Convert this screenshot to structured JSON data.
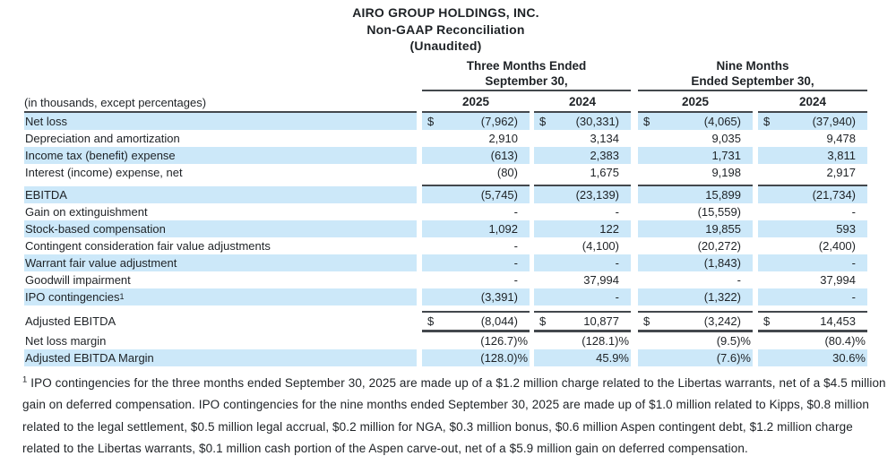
{
  "title": {
    "company": "AIRO GROUP HOLDINGS, INC.",
    "line2": "Non-GAAP Reconciliation",
    "line3": "(Unaudited)"
  },
  "table": {
    "note": "(in thousands, except percentages)",
    "currency_symbol": "$",
    "column_groups": [
      {
        "line1": "Three Months Ended",
        "line2": "September 30,"
      },
      {
        "line1": "Nine Months",
        "line2": "Ended September 30,"
      }
    ],
    "years": [
      "2025",
      "2024",
      "2025",
      "2024"
    ],
    "rows": [
      {
        "label": "Net loss",
        "dollar": true,
        "shaded": true,
        "values": [
          "(7,962)",
          "(30,331)",
          "(4,065)",
          "(37,940)"
        ]
      },
      {
        "label": "Depreciation and amortization",
        "shaded": false,
        "values": [
          "2,910",
          "3,134",
          "9,035",
          "9,478"
        ]
      },
      {
        "label": "Income tax (benefit) expense",
        "shaded": true,
        "values": [
          "(613)",
          "2,383",
          "1,731",
          "3,811"
        ]
      },
      {
        "label": "Interest (income) expense, net",
        "shaded": false,
        "values": [
          "(80)",
          "1,675",
          "9,198",
          "2,917"
        ]
      },
      {
        "label": "EBITDA",
        "shaded": true,
        "rule_above": true,
        "space_above": 4,
        "values": [
          "(5,745)",
          "(23,139)",
          "15,899",
          "(21,734)"
        ]
      },
      {
        "label": "Gain on extinguishment",
        "shaded": false,
        "values": [
          "-",
          "-",
          "(15,559)",
          "-"
        ]
      },
      {
        "label": "Stock-based compensation",
        "shaded": true,
        "values": [
          "1,092",
          "122",
          "19,855",
          "593"
        ]
      },
      {
        "label": "Contingent consideration fair value adjustments",
        "shaded": false,
        "values": [
          "-",
          "(4,100)",
          "(20,272)",
          "(2,400)"
        ]
      },
      {
        "label": "Warrant fair value adjustment",
        "shaded": true,
        "values": [
          "-",
          "-",
          "(1,843)",
          "-"
        ]
      },
      {
        "label": "Goodwill impairment",
        "shaded": false,
        "values": [
          "-",
          "37,994",
          "-",
          "37,994"
        ]
      },
      {
        "label": "IPO contingencies",
        "label_sup": "1",
        "shaded": true,
        "values": [
          "(3,391)",
          "-",
          "(1,322)",
          "-"
        ]
      },
      {
        "label": "Adjusted EBITDA",
        "dollar": true,
        "shaded": false,
        "rule_above": true,
        "space_above": 6,
        "thick_rule_below": true,
        "values": [
          "(8,044)",
          "10,877",
          "(3,242)",
          "14,453"
        ]
      },
      {
        "label": "Net loss margin",
        "shaded": false,
        "values": [
          "(126.7)%",
          "(128.1)%",
          "(9.5)%",
          "(80.4)%"
        ]
      },
      {
        "label": "Adjusted EBITDA Margin",
        "shaded": true,
        "values": [
          "(128.0)%",
          "45.9%",
          "(7.6)%",
          "30.6%"
        ]
      }
    ]
  },
  "footnote": {
    "sup": "1",
    "text": "IPO contingencies for the three months ended September 30, 2025 are made up of a $1.2 million charge related to the Libertas warrants, net of a $4.5 million gain on deferred compensation. IPO contingencies for the nine months ended September 30, 2025 are made up of $1.0 million related to Kipps, $0.8 million related to the legal settlement, $0.5 million legal accrual, $0.2 million for NGA, $0.3 million bonus, $0.6 million Aspen contingent debt, $1.2 million charge related to the Libertas warrants, $0.1 million cash portion of the Aspen carve-out, net of a $5.9 million gain on deferred compensation."
  },
  "colors": {
    "row_shade": "#cce8f9",
    "rule": "#43484d",
    "text": "#1e2226",
    "background": "#ffffff"
  }
}
